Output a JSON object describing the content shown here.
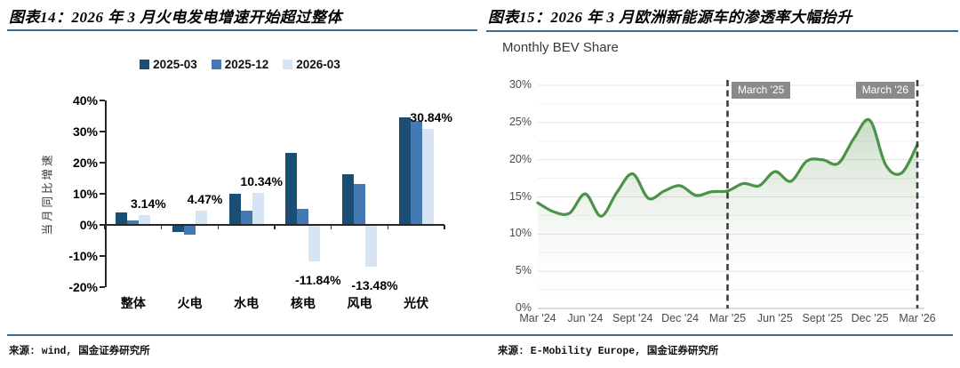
{
  "left_panel": {
    "title": "图表14：2026 年 3 月火电发电增速开始超过整体",
    "source": "来源: wind, 国金证券研究所"
  },
  "right_panel": {
    "title": "图表15：2026 年 3 月欧洲新能源车的渗透率大幅抬升",
    "subtitle": "Monthly BEV Share",
    "source": "来源: E-Mobility Europe, 国金证券研究所"
  },
  "colors": {
    "rule_accent": "#376b91",
    "series_2025_03": "#1a4e74",
    "series_2025_12": "#4579b3",
    "series_2026_03": "#d6e4f3",
    "line_green": "#4a9349",
    "badge_gray": "#8a8a8a"
  },
  "chart_data": [
    {
      "type": "bar",
      "title": "2026 年 3 月火电发电增速开始超过整体",
      "ylabel": "当月同比增速",
      "categories": [
        "整体",
        "火电",
        "水电",
        "核电",
        "风电",
        "光伏"
      ],
      "series": [
        {
          "name": "2025-03",
          "color": "#1a4e74",
          "values": [
            4.0,
            -2.4,
            9.9,
            23.2,
            16.4,
            34.7
          ]
        },
        {
          "name": "2025-12",
          "color": "#4579b3",
          "values": [
            1.3,
            -3.1,
            4.5,
            5.1,
            13.1,
            33.4
          ]
        },
        {
          "name": "2026-03",
          "color": "#d6e4f3",
          "values": [
            3.14,
            4.47,
            10.34,
            -11.84,
            -13.48,
            30.84
          ]
        }
      ],
      "data_labels": [
        "3.14%",
        "4.47%",
        "10.34%",
        "-11.84%",
        "-13.48%",
        "30.84%"
      ],
      "ylim": [
        -20,
        40
      ],
      "yticks": [
        40,
        30,
        20,
        10,
        0,
        -10,
        -20
      ],
      "ytick_suffix": "%",
      "grid": false,
      "legend_position": "top"
    },
    {
      "type": "line",
      "title": "Monthly BEV Share",
      "months": [
        "Mar '24",
        "Apr '24",
        "May '24",
        "Jun '24",
        "Jul '24",
        "Aug '24",
        "Sept '24",
        "Oct '24",
        "Nov '24",
        "Dec '24",
        "Jan '25",
        "Feb '25",
        "Mar '25",
        "Apr '25",
        "May '25",
        "Jun '25",
        "Jul '25",
        "Aug '25",
        "Sept '25",
        "Oct '25",
        "Nov '25",
        "Dec '25",
        "Jan '26",
        "Feb '26",
        "Mar '26"
      ],
      "values": [
        14.2,
        13.0,
        12.8,
        15.4,
        12.4,
        15.6,
        18.1,
        14.8,
        15.8,
        16.5,
        15.2,
        15.7,
        15.8,
        16.8,
        16.5,
        18.4,
        17.1,
        19.8,
        20.0,
        19.5,
        22.9,
        25.3,
        19.3,
        18.2,
        22.0
      ],
      "xticks": [
        "Mar '24",
        "Jun '24",
        "Sept '24",
        "Dec '24",
        "Mar '25",
        "Jun '25",
        "Sept '25",
        "Dec '25",
        "Mar '26"
      ],
      "ylim": [
        0,
        30
      ],
      "yticks": [
        0,
        5,
        10,
        15,
        20,
        25,
        30
      ],
      "ytick_suffix": "%",
      "grid": true,
      "grid_minor_step": 2.5,
      "annotations": [
        {
          "label": "March '25",
          "month_index": 12
        },
        {
          "label": "March '26",
          "month_index": 24
        }
      ],
      "line_color": "#4a9349",
      "area_fill": "green gradient fading down"
    }
  ]
}
